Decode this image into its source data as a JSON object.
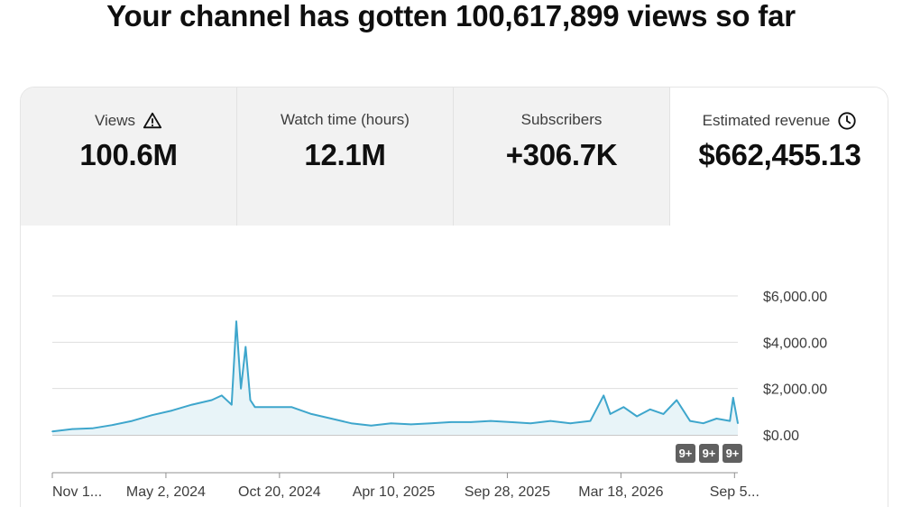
{
  "headline": "Your channel has gotten 100,617,899 views so far",
  "tabs": [
    {
      "label": "Views",
      "value": "100.6M",
      "icon": "warning-icon",
      "active": false
    },
    {
      "label": "Watch time (hours)",
      "value": "12.1M",
      "icon": "",
      "active": false
    },
    {
      "label": "Subscribers",
      "value": "+306.7K",
      "icon": "",
      "active": false
    },
    {
      "label": "Estimated revenue",
      "value": "$662,455.13",
      "icon": "clock-icon",
      "active": true
    }
  ],
  "chart": {
    "y_tick_labels": [
      "$6,000.00",
      "$4,000.00",
      "$2,000.00",
      "$0.00"
    ],
    "x_tick_labels": [
      "Nov 1...",
      "May 2, 2024",
      "Oct 20, 2024",
      "Apr 10, 2025",
      "Sep 28, 2025",
      "Mar 18, 2026",
      "Sep 5..."
    ],
    "badges": [
      "9+",
      "9+",
      "9+"
    ],
    "line_color": "#3ea6cc",
    "fill_color": "#e8f4f8"
  },
  "chart_data": {
    "type": "area",
    "ylabel": "",
    "xlabel": "",
    "ylim": [
      0,
      6000
    ],
    "y_ticks": [
      0,
      2000,
      4000,
      6000
    ],
    "x_range": [
      "2023-11-13",
      "2026-09-10"
    ],
    "x_ticks": [
      "2023-11-13",
      "2024-05-02",
      "2024-10-20",
      "2025-04-10",
      "2025-09-28",
      "2026-03-18",
      "2026-09-05"
    ],
    "grid": true,
    "series": [
      {
        "x": [
          "2023-11-13",
          "2023-12-13",
          "2024-01-12",
          "2024-02-11",
          "2024-03-12",
          "2024-04-11",
          "2024-05-11",
          "2024-06-10",
          "2024-07-10",
          "2024-07-25",
          "2024-08-09",
          "2024-08-16",
          "2024-08-23",
          "2024-08-30",
          "2024-09-06",
          "2024-09-13",
          "2024-10-08",
          "2024-11-07",
          "2024-12-07",
          "2025-01-06",
          "2025-02-05",
          "2025-03-07",
          "2025-04-06",
          "2025-05-06",
          "2025-06-05",
          "2025-07-05",
          "2025-08-04",
          "2025-09-03",
          "2025-10-03",
          "2025-11-02",
          "2025-12-02",
          "2026-01-01",
          "2026-01-31",
          "2026-02-20",
          "2026-03-02",
          "2026-03-22",
          "2026-04-11",
          "2026-05-01",
          "2026-05-21",
          "2026-06-10",
          "2026-06-30",
          "2026-07-20",
          "2026-08-09",
          "2026-08-29",
          "2026-09-03",
          "2026-09-10"
        ],
        "values": [
          150,
          250,
          280,
          420,
          600,
          850,
          1050,
          1300,
          1500,
          1700,
          1300,
          4900,
          2000,
          3800,
          1500,
          1200,
          1200,
          1200,
          900,
          700,
          500,
          400,
          500,
          450,
          500,
          550,
          550,
          600,
          550,
          500,
          600,
          500,
          600,
          1700,
          900,
          1200,
          800,
          1100,
          900,
          1500,
          600,
          500,
          700,
          600,
          1600,
          500
        ]
      }
    ]
  }
}
